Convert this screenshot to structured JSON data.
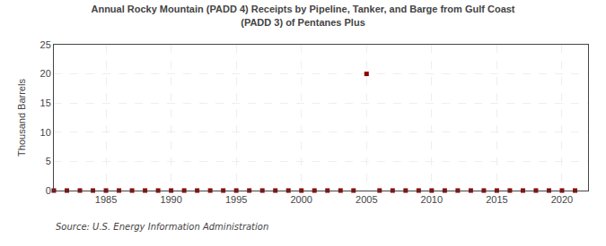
{
  "chart_data": {
    "type": "scatter",
    "title": "Annual Rocky Mountain (PADD 4) Receipts by Pipeline, Tanker, and Barge from Gulf Coast\n(PADD 3) of Pentanes Plus",
    "ylabel": "Thousand Barrels",
    "annotations": [
      "Source: U.S. Energy Information Administration"
    ],
    "x": [
      1981,
      1982,
      1983,
      1984,
      1985,
      1986,
      1987,
      1988,
      1989,
      1990,
      1991,
      1992,
      1993,
      1994,
      1995,
      1996,
      1997,
      1998,
      1999,
      2000,
      2001,
      2002,
      2003,
      2004,
      2005,
      2006,
      2007,
      2008,
      2009,
      2010,
      2011,
      2012,
      2013,
      2014,
      2015,
      2016,
      2017,
      2018,
      2019,
      2020,
      2021
    ],
    "values": [
      0,
      0,
      0,
      0,
      0,
      0,
      0,
      0,
      0,
      0,
      0,
      0,
      0,
      0,
      0,
      0,
      0,
      0,
      0,
      0,
      0,
      0,
      0,
      0,
      20,
      0,
      0,
      0,
      0,
      0,
      0,
      0,
      0,
      0,
      0,
      0,
      0,
      0,
      0,
      0,
      0
    ],
    "color": "#8b0000",
    "marker": "square",
    "xlim": [
      1981,
      2022
    ],
    "xticks": [
      1985,
      1990,
      1995,
      2000,
      2005,
      2010,
      2015,
      2020
    ],
    "ylim": [
      0,
      25
    ],
    "yticks": [
      0,
      5,
      10,
      15,
      20,
      25
    ],
    "grid": true
  }
}
